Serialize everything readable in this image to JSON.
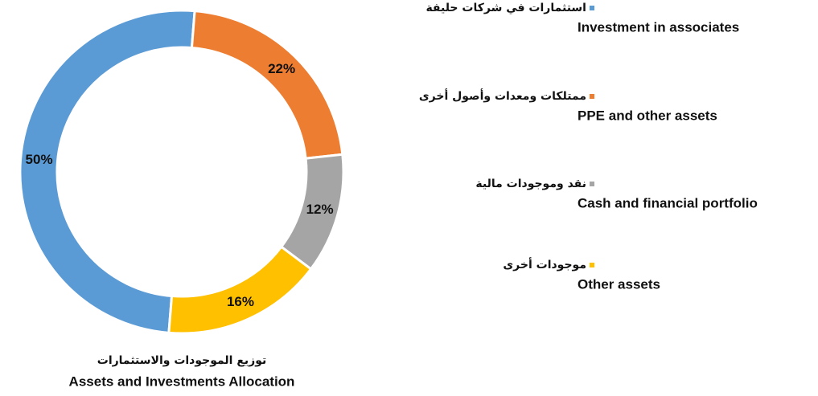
{
  "chart_data": {
    "type": "donut",
    "title_ar": "توزيع الموجودات والاستثمارات",
    "title": "Assets and Investments Allocation",
    "series": [
      {
        "name_ar": "استثمارات في شركات حليفة",
        "name": "Investment in associates",
        "color": "#5b9bd5",
        "value": 50,
        "value_label": "50%"
      },
      {
        "name_ar": "ممتلكات ومعدات وأصول أخرى",
        "name": "PPE and other assets",
        "color": "#ed7d31",
        "value": 22,
        "value_label": "22%"
      },
      {
        "name_ar": "نقد وموجودات مالية",
        "name": "Cash and financial portfolio",
        "color": "#a5a5a5",
        "value": 12,
        "value_label": "12%"
      },
      {
        "name_ar": "موجودات أخرى",
        "name": "Other assets",
        "color": "#ffc000",
        "value": 16,
        "value_label": "16%"
      }
    ]
  }
}
